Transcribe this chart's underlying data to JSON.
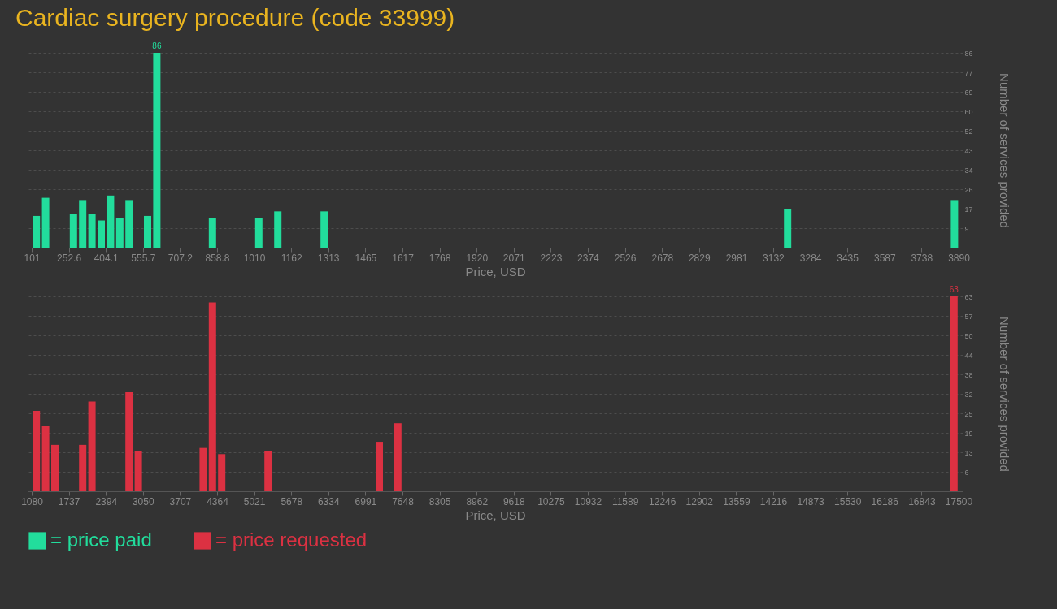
{
  "chart_data": [
    {
      "type": "bar",
      "title": "Cardiac surgery procedure (code 33999)",
      "xlabel": "Price, USD",
      "ylabel": "Number of services provided",
      "x": [
        120,
        157.8,
        271.5,
        309.4,
        347.3,
        385.2,
        423.1,
        461,
        498.9,
        574.6,
        612.5,
        839.9,
        1029.3,
        1107.1,
        1296.5,
        3191,
        3873
      ],
      "series": [
        {
          "name": "= price paid",
          "color": "#22dd9c",
          "values": [
            14,
            22,
            15,
            21,
            15,
            12,
            23,
            13,
            21,
            14,
            86,
            13,
            13,
            16,
            16,
            17,
            21
          ],
          "value_labels": [
            null,
            null,
            null,
            null,
            null,
            null,
            null,
            null,
            null,
            null,
            "86",
            null,
            null,
            null,
            null,
            null,
            null
          ]
        }
      ],
      "xlim": [
        101,
        3890
      ],
      "xticks": [
        101,
        252.6,
        404.1,
        555.7,
        707.2,
        858.8,
        1010,
        1162,
        1313,
        1465,
        1617,
        1768,
        1920,
        2071,
        2223,
        2374,
        2526,
        2678,
        2829,
        2981,
        3132,
        3284,
        3435,
        3587,
        3738,
        3890
      ],
      "ylim": [
        0,
        86
      ],
      "yticks": [
        {
          "value": 8.6,
          "label": "9"
        },
        {
          "value": 17.2,
          "label": "17"
        },
        {
          "value": 25.8,
          "label": "26"
        },
        {
          "value": 34.4,
          "label": "34"
        },
        43,
        {
          "value": 51.6,
          "label": "52"
        },
        {
          "value": 60.2,
          "label": "60"
        },
        {
          "value": 68.8,
          "label": "69"
        },
        {
          "value": 77.4,
          "label": "77"
        },
        86
      ],
      "grid": "y",
      "legend": "bottom"
    },
    {
      "type": "bar",
      "xlabel": "Price, USD",
      "ylabel": "Number of services provided",
      "x": [
        1162.1,
        1326.3,
        1490.5,
        1983.1,
        2147.3,
        2804.1,
        2968.3,
        4117.7,
        4281.9,
        4446.1,
        5267.1,
        7237.5,
        7565.9,
        17417.9
      ],
      "series": [
        {
          "name": "= price requested",
          "color": "#dc3142",
          "values": [
            26,
            21,
            15,
            15,
            29,
            32,
            13,
            14,
            61,
            12,
            13,
            16,
            22,
            63
          ],
          "value_labels": [
            null,
            null,
            null,
            null,
            null,
            null,
            null,
            null,
            null,
            null,
            null,
            null,
            null,
            "63"
          ]
        }
      ],
      "xlim": [
        1080,
        17500
      ],
      "xticks": [
        1080,
        1737,
        2394,
        3050,
        3707,
        4364,
        5021,
        5678,
        6334,
        6991,
        7648,
        8305,
        8962,
        9618,
        10275,
        10932,
        11589,
        12246,
        12902,
        13559,
        14216,
        14873,
        15530,
        16186,
        16843,
        17500
      ],
      "ylim": [
        0,
        63
      ],
      "yticks": [
        {
          "value": 6.3,
          "label": "6"
        },
        {
          "value": 12.6,
          "label": "13"
        },
        {
          "value": 18.9,
          "label": "19"
        },
        {
          "value": 25.2,
          "label": "25"
        },
        {
          "value": 31.5,
          "label": "32"
        },
        {
          "value": 37.8,
          "label": "38"
        },
        {
          "value": 44.1,
          "label": "44"
        },
        {
          "value": 50.4,
          "label": "50"
        },
        {
          "value": 56.7,
          "label": "57"
        },
        63
      ],
      "grid": "y",
      "legend": "bottom"
    }
  ]
}
